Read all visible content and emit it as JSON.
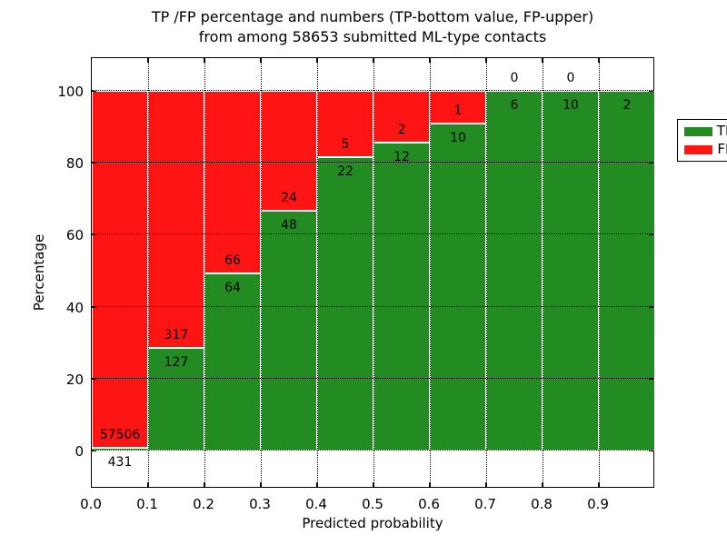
{
  "figure": {
    "title_line1": "TP /FP percentage and numbers (TP-bottom value, FP-upper)",
    "title_line2": "from among 58653 submitted ML-type contacts",
    "xlabel": "Predicted probability",
    "ylabel": "Percentage"
  },
  "legend": {
    "position": "upper right",
    "items": [
      {
        "label": "TP",
        "color": "#228B22"
      },
      {
        "label": "FP",
        "color": "#ff1414"
      }
    ]
  },
  "chart_data": {
    "type": "bar",
    "stacked": true,
    "title": "TP /FP percentage and numbers (TP-bottom value, FP-upper) from among 58653 submitted ML-type contacts",
    "xlabel": "Predicted probability",
    "ylabel": "Percentage",
    "total_submitted": 58653,
    "xlim": [
      0.0,
      1.0
    ],
    "ylim": [
      -10,
      110
    ],
    "x_ticks": [
      "0.0",
      "0.1",
      "0.2",
      "0.3",
      "0.4",
      "0.5",
      "0.6",
      "0.7",
      "0.8",
      "0.9"
    ],
    "y_ticks": [
      0,
      20,
      40,
      60,
      80,
      100
    ],
    "grid": true,
    "bin_width": 0.1,
    "series": [
      {
        "name": "TP",
        "color": "#228B22"
      },
      {
        "name": "FP",
        "color": "#ff1414"
      }
    ],
    "bins": [
      {
        "range": [
          0.0,
          0.1
        ],
        "tp": 431,
        "fp": 57506,
        "tp_pct": 0.74,
        "tp_label": "431",
        "fp_label": "57506"
      },
      {
        "range": [
          0.1,
          0.2
        ],
        "tp": 127,
        "fp": 317,
        "tp_pct": 28.6,
        "tp_label": "127",
        "fp_label": "317"
      },
      {
        "range": [
          0.2,
          0.3
        ],
        "tp": 64,
        "fp": 66,
        "tp_pct": 49.23,
        "tp_label": "64",
        "fp_label": "66"
      },
      {
        "range": [
          0.3,
          0.4
        ],
        "tp": 48,
        "fp": 24,
        "tp_pct": 66.67,
        "tp_label": "48",
        "fp_label": "24"
      },
      {
        "range": [
          0.4,
          0.5
        ],
        "tp": 22,
        "fp": 5,
        "tp_pct": 81.48,
        "tp_label": "22",
        "fp_label": "5"
      },
      {
        "range": [
          0.5,
          0.6
        ],
        "tp": 12,
        "fp": 2,
        "tp_pct": 85.71,
        "tp_label": "12",
        "fp_label": "2"
      },
      {
        "range": [
          0.6,
          0.7
        ],
        "tp": 10,
        "fp": 1,
        "tp_pct": 90.91,
        "tp_label": "10",
        "fp_label": "1"
      },
      {
        "range": [
          0.7,
          0.8
        ],
        "tp": 6,
        "fp": 0,
        "tp_pct": 100,
        "tp_label": "6",
        "fp_label": "0"
      },
      {
        "range": [
          0.8,
          0.9
        ],
        "tp": 10,
        "fp": 0,
        "tp_pct": 100,
        "tp_label": "10",
        "fp_label": "0"
      },
      {
        "range": [
          0.9,
          1.0
        ],
        "tp": 2,
        "tp_pct": 100,
        "tp_label": "2",
        "fp_label": ""
      }
    ]
  }
}
